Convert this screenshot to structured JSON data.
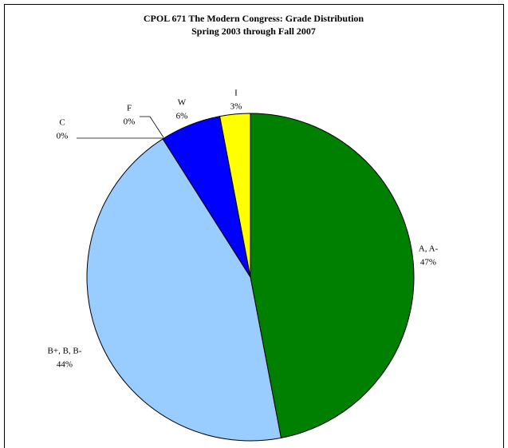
{
  "chart_data": {
    "type": "pie",
    "title": "CPOL 671 The Modern Congress: Grade Distribution",
    "subtitle": "Spring 2003 through Fall 2007",
    "categories": [
      "A, A-",
      "B+, B, B-",
      "C",
      "F",
      "W",
      "I"
    ],
    "values": [
      47,
      44,
      0,
      0,
      6,
      3
    ],
    "value_labels": [
      "47%",
      "44%",
      "0%",
      "0%",
      "6%",
      "3%"
    ],
    "colors": [
      "#008000",
      "#99ccff",
      "#ff99cc",
      "#ff0000",
      "#0000ff",
      "#ffff00"
    ]
  }
}
